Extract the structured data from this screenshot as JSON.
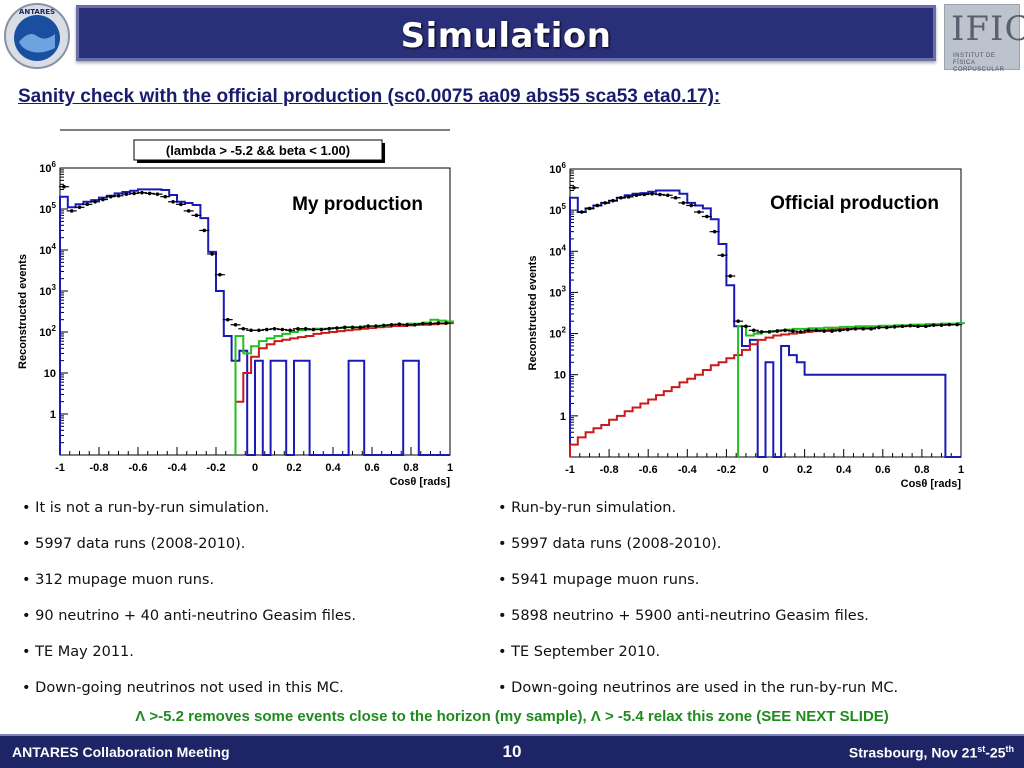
{
  "header": {
    "title": "Simulation"
  },
  "logos": {
    "left_text": "ANTARES",
    "right_main": "IFIC",
    "right_sub": "INSTITUT DE FÍSICA CORPUSCULAR"
  },
  "subtitle": "Sanity check with the official production (sc0.0075 aa09 abs55 sca53 eta0.17):",
  "chart_data": [
    {
      "type": "line",
      "title": "(lambda > -5.2 && beta < 1.00)",
      "annotation": "My production",
      "xlabel": "Cosθ [rads]",
      "ylabel": "Reconstructed events",
      "log_y": true,
      "xlim": [
        -1,
        1
      ],
      "ylim": [
        0.1,
        1000000
      ],
      "x_ticks": [
        "-1",
        "-0.8",
        "-0.6",
        "-0.4",
        "-0.2",
        "0",
        "0.2",
        "0.4",
        "0.6",
        "0.8",
        "1"
      ],
      "y_ticks": [
        "1",
        "10",
        "10^2",
        "10^3",
        "10^4",
        "10^5",
        "10^6"
      ],
      "series": [
        {
          "color": "#1a1ab8",
          "x": [
            -1,
            -0.96,
            -0.92,
            -0.88,
            -0.84,
            -0.8,
            -0.76,
            -0.72,
            -0.68,
            -0.64,
            -0.6,
            -0.56,
            -0.52,
            -0.48,
            -0.44,
            -0.4,
            -0.36,
            -0.32,
            -0.28,
            -0.24,
            -0.2,
            -0.16,
            -0.12,
            -0.08,
            -0.04,
            0,
            0.04,
            0.08,
            0.12,
            0.16,
            0.2,
            0.24,
            0.28,
            0.32,
            0.36,
            0.4,
            0.44,
            0.48,
            0.52,
            0.56,
            0.6,
            0.64,
            0.68,
            0.72,
            0.76,
            0.8,
            0.84,
            0.88,
            0.92,
            0.96
          ],
          "y": [
            200000,
            110000,
            130000,
            150000,
            165000,
            190000,
            210000,
            240000,
            260000,
            280000,
            300000,
            300000,
            300000,
            290000,
            220000,
            150000,
            140000,
            125000,
            60000,
            9000,
            1000,
            80,
            20,
            35,
            0.1,
            20,
            0.1,
            20,
            20,
            0.1,
            20,
            20,
            0.1,
            0.1,
            0.1,
            0.1,
            0.1,
            20,
            20,
            0.1,
            0.1,
            0.1,
            0.1,
            0.1,
            20,
            20,
            0.1,
            0.1,
            0.1,
            0.1
          ]
        },
        {
          "color": "#cc1a1a",
          "x": [
            -0.1,
            -0.06,
            -0.02,
            0.02,
            0.06,
            0.1,
            0.14,
            0.18,
            0.22,
            0.26,
            0.3,
            0.34,
            0.38,
            0.42,
            0.46,
            0.5,
            0.54,
            0.58,
            0.62,
            0.66,
            0.7,
            0.74,
            0.78,
            0.82,
            0.86,
            0.9,
            0.94,
            0.98
          ],
          "y": [
            2,
            10,
            25,
            40,
            50,
            60,
            65,
            70,
            75,
            80,
            90,
            95,
            100,
            105,
            110,
            115,
            120,
            125,
            130,
            135,
            140,
            140,
            145,
            150,
            150,
            155,
            160,
            165
          ]
        },
        {
          "color": "#22c022",
          "x": [
            -0.1,
            -0.06,
            -0.02,
            0.02,
            0.06,
            0.1,
            0.14,
            0.18,
            0.22,
            0.26,
            0.3,
            0.34,
            0.38,
            0.42,
            0.46,
            0.5,
            0.54,
            0.58,
            0.62,
            0.66,
            0.7,
            0.74,
            0.78,
            0.82,
            0.86,
            0.9,
            0.94,
            0.98
          ],
          "y": [
            80,
            30,
            45,
            60,
            70,
            80,
            90,
            100,
            110,
            115,
            120,
            120,
            125,
            125,
            130,
            130,
            135,
            135,
            140,
            145,
            150,
            150,
            160,
            160,
            170,
            200,
            190,
            180
          ]
        },
        {
          "color": "#000000",
          "x": [
            -0.98,
            -0.94,
            -0.9,
            -0.86,
            -0.82,
            -0.78,
            -0.74,
            -0.7,
            -0.66,
            -0.62,
            -0.58,
            -0.54,
            -0.5,
            -0.46,
            -0.42,
            -0.38,
            -0.34,
            -0.3,
            -0.26,
            -0.22,
            -0.18,
            -0.14,
            -0.1,
            -0.06,
            -0.02,
            0.02,
            0.06,
            0.1,
            0.14,
            0.18,
            0.22,
            0.26,
            0.3,
            0.34,
            0.38,
            0.42,
            0.46,
            0.5,
            0.54,
            0.58,
            0.62,
            0.66,
            0.7,
            0.74,
            0.78,
            0.82,
            0.86,
            0.9,
            0.94,
            0.98
          ],
          "y": [
            350000,
            90000,
            110000,
            130000,
            150000,
            170000,
            200000,
            210000,
            230000,
            240000,
            250000,
            240000,
            230000,
            200000,
            150000,
            130000,
            90000,
            70000,
            30000,
            8000,
            2500,
            200,
            150,
            120,
            110,
            110,
            115,
            120,
            115,
            110,
            120,
            120,
            115,
            115,
            120,
            125,
            130,
            130,
            130,
            140,
            140,
            145,
            150,
            155,
            150,
            150,
            160,
            160,
            165,
            165
          ]
        }
      ]
    },
    {
      "type": "line",
      "title": "",
      "annotation": "Official  production",
      "xlabel": "Cosθ [rads]",
      "ylabel": "Reconstructed events",
      "log_y": true,
      "xlim": [
        -1,
        1
      ],
      "ylim": [
        0.1,
        1000000
      ],
      "x_ticks": [
        "-1",
        "-0.8",
        "-0.6",
        "-0.4",
        "-0.2",
        "0",
        "0.2",
        "0.4",
        "0.6",
        "0.8",
        "1"
      ],
      "y_ticks": [
        "1",
        "10",
        "10^2",
        "10^3",
        "10^4",
        "10^5",
        "10^6"
      ],
      "series": [
        {
          "color": "#1a1ab8",
          "x": [
            -1,
            -0.96,
            -0.92,
            -0.88,
            -0.84,
            -0.8,
            -0.76,
            -0.72,
            -0.68,
            -0.64,
            -0.6,
            -0.56,
            -0.52,
            -0.48,
            -0.44,
            -0.4,
            -0.36,
            -0.32,
            -0.28,
            -0.24,
            -0.2,
            -0.16,
            -0.12,
            -0.08,
            -0.04,
            0,
            0.04,
            0.08,
            0.12,
            0.16,
            0.2,
            0.24,
            0.28,
            0.32,
            0.36,
            0.4,
            0.44,
            0.48,
            0.52,
            0.56,
            0.6,
            0.64,
            0.68,
            0.72,
            0.76,
            0.8,
            0.84,
            0.88,
            0.92,
            0.96
          ],
          "y": [
            200000,
            90000,
            110000,
            130000,
            150000,
            170000,
            200000,
            230000,
            250000,
            260000,
            280000,
            300000,
            300000,
            300000,
            250000,
            150000,
            130000,
            110000,
            60000,
            15000,
            1500,
            150,
            50,
            70,
            0.1,
            20,
            0.1,
            50,
            30,
            20,
            10,
            10,
            10,
            10,
            10,
            10,
            10,
            10,
            10,
            10,
            10,
            10,
            10,
            10,
            10,
            10,
            10,
            10,
            0.1,
            0.1
          ]
        },
        {
          "color": "#cc1a1a",
          "x": [
            -1,
            -0.96,
            -0.92,
            -0.88,
            -0.84,
            -0.8,
            -0.76,
            -0.72,
            -0.68,
            -0.64,
            -0.6,
            -0.56,
            -0.52,
            -0.48,
            -0.44,
            -0.4,
            -0.36,
            -0.32,
            -0.28,
            -0.24,
            -0.2,
            -0.16,
            -0.12,
            -0.08,
            -0.04,
            0,
            0.04,
            0.08,
            0.12,
            0.16,
            0.2,
            0.24,
            0.28,
            0.32,
            0.36,
            0.4,
            0.44,
            0.48,
            0.52,
            0.56,
            0.6,
            0.64,
            0.68,
            0.72,
            0.76,
            0.8,
            0.84,
            0.88,
            0.92,
            0.96
          ],
          "y": [
            0.2,
            0.3,
            0.4,
            0.5,
            0.6,
            0.8,
            1,
            1.3,
            1.6,
            2,
            2.5,
            3.2,
            4,
            5,
            6.5,
            8,
            10,
            13,
            17,
            20,
            25,
            30,
            40,
            55,
            70,
            80,
            90,
            95,
            100,
            105,
            110,
            115,
            120,
            125,
            130,
            130,
            135,
            140,
            140,
            145,
            145,
            150,
            150,
            155,
            155,
            160,
            160,
            165,
            165,
            170
          ]
        },
        {
          "color": "#22c022",
          "x": [
            -0.14,
            -0.1,
            -0.06,
            -0.02,
            0.02,
            0.06,
            0.1,
            0.14,
            0.18,
            0.22,
            0.26,
            0.3,
            0.34,
            0.38,
            0.42,
            0.46,
            0.5,
            0.54,
            0.58,
            0.62,
            0.66,
            0.7,
            0.74,
            0.78,
            0.82,
            0.86,
            0.9,
            0.94,
            0.98
          ],
          "y": [
            150,
            90,
            100,
            110,
            115,
            120,
            125,
            130,
            130,
            135,
            135,
            140,
            140,
            145,
            145,
            150,
            150,
            150,
            155,
            155,
            160,
            160,
            165,
            165,
            170,
            170,
            175,
            175,
            180
          ]
        },
        {
          "color": "#000000",
          "x": [
            -0.98,
            -0.94,
            -0.9,
            -0.86,
            -0.82,
            -0.78,
            -0.74,
            -0.7,
            -0.66,
            -0.62,
            -0.58,
            -0.54,
            -0.5,
            -0.46,
            -0.42,
            -0.38,
            -0.34,
            -0.3,
            -0.26,
            -0.22,
            -0.18,
            -0.14,
            -0.1,
            -0.06,
            -0.02,
            0.02,
            0.06,
            0.1,
            0.14,
            0.18,
            0.22,
            0.26,
            0.3,
            0.34,
            0.38,
            0.42,
            0.46,
            0.5,
            0.54,
            0.58,
            0.62,
            0.66,
            0.7,
            0.74,
            0.78,
            0.82,
            0.86,
            0.9,
            0.94,
            0.98
          ],
          "y": [
            350000,
            90000,
            110000,
            130000,
            150000,
            170000,
            200000,
            210000,
            230000,
            240000,
            250000,
            240000,
            230000,
            200000,
            150000,
            130000,
            90000,
            70000,
            30000,
            8000,
            2500,
            200,
            150,
            120,
            110,
            110,
            115,
            120,
            115,
            110,
            120,
            120,
            115,
            115,
            120,
            125,
            130,
            130,
            130,
            140,
            140,
            145,
            150,
            155,
            150,
            150,
            160,
            160,
            165,
            165
          ]
        }
      ]
    }
  ],
  "left_bullets": [
    "• It is not a run-by-run simulation.",
    "• 5997 data runs (2008-2010).",
    "• 312 mupage muon runs.",
    "• 90 neutrino + 40 anti-neutrino Geasim files.",
    "• TE May 2011.",
    "• Down-going neutrinos not used in this MC."
  ],
  "right_bullets": [
    "• Run-by-run simulation.",
    "• 5997 data runs (2008-2010).",
    "• 5941 mupage muon runs.",
    "• 5898 neutrino + 5900 anti-neutrino Geasim files.",
    "• TE September 2010.",
    "• Down-going neutrinos are used in the run-by-run MC."
  ],
  "note": "Λ >-5.2 removes some events close to the horizon (my sample), Λ > -5.4 relax this zone (SEE NEXT SLIDE)",
  "footer": {
    "left": "ANTARES Collaboration Meeting",
    "page": "10",
    "right_prefix": "Strasbourg, Nov 21",
    "right_sup1": "st",
    "right_mid": "-25",
    "right_sup2": "th"
  },
  "colors": {
    "header_bg": "#2a2f7a",
    "footer_bg": "#1e2566",
    "subtitle": "#1b1b6e",
    "note": "#1f8b1f"
  }
}
